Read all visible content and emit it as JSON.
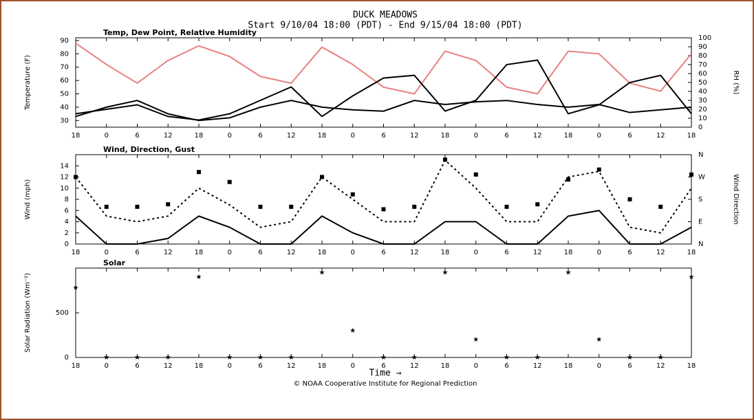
{
  "title": "DUCK MEADOWS",
  "subtitle": "Start 9/10/04 18:00 (PDT) - End 9/15/04 18:00 (PDT)",
  "xlabel": "Time →",
  "footer": "© NOAA Cooperative Institute for Regional Prediction",
  "chart_data": [
    {
      "type": "line",
      "title": "Temp, Dew Point, Relative Humidity",
      "ylabel": "Temperature (F)",
      "y2label": "RH (%)",
      "x": [
        0,
        6,
        12,
        18,
        24,
        30,
        36,
        42,
        48,
        54,
        60,
        66,
        72,
        78,
        84,
        90,
        96,
        102,
        108,
        114,
        120
      ],
      "xlim": [
        0,
        120
      ],
      "xticks": [
        {
          "value": 0,
          "label": "18"
        },
        {
          "value": 6,
          "label": "0"
        },
        {
          "value": 12,
          "label": "6"
        },
        {
          "value": 18,
          "label": "12"
        },
        {
          "value": 24,
          "label": "18"
        },
        {
          "value": 30,
          "label": "0"
        },
        {
          "value": 36,
          "label": "6"
        },
        {
          "value": 42,
          "label": "12"
        },
        {
          "value": 48,
          "label": "18"
        },
        {
          "value": 54,
          "label": "0"
        },
        {
          "value": 60,
          "label": "6"
        },
        {
          "value": 66,
          "label": "12"
        },
        {
          "value": 72,
          "label": "18"
        },
        {
          "value": 78,
          "label": "0"
        },
        {
          "value": 84,
          "label": "6"
        },
        {
          "value": 90,
          "label": "12"
        },
        {
          "value": 96,
          "label": "18"
        },
        {
          "value": 102,
          "label": "0"
        },
        {
          "value": 108,
          "label": "6"
        },
        {
          "value": 114,
          "label": "12"
        },
        {
          "value": 120,
          "label": "18"
        }
      ],
      "ylim": [
        25,
        92
      ],
      "yticks": [
        30,
        40,
        50,
        60,
        70,
        80,
        90
      ],
      "y2lim": [
        0,
        100
      ],
      "y2ticks": [
        0,
        10,
        20,
        30,
        40,
        50,
        60,
        70,
        80,
        90,
        100
      ],
      "series": [
        {
          "color": "#e88080",
          "style": "line",
          "values": [
            88,
            72,
            58,
            75,
            86,
            78,
            63,
            58,
            85,
            72,
            55,
            50,
            82,
            75,
            55,
            50,
            82,
            80,
            58,
            52,
            80
          ]
        },
        {
          "color": "#000000",
          "style": "line",
          "values": [
            33,
            40,
            45,
            35,
            30,
            32,
            40,
            45,
            40,
            38,
            37,
            45,
            42,
            44,
            45,
            42,
            40,
            42,
            36,
            38,
            40
          ]
        },
        {
          "color": "#000000",
          "style": "line",
          "axis": "y2",
          "values": [
            15,
            20,
            25,
            12,
            8,
            15,
            30,
            45,
            12,
            35,
            55,
            58,
            18,
            30,
            70,
            75,
            15,
            25,
            50,
            58,
            15
          ]
        }
      ]
    },
    {
      "type": "line",
      "title": "Wind, Direction, Gust",
      "ylabel": "Wind (mph)",
      "y2label": "Wind Direction",
      "x": [
        0,
        6,
        12,
        18,
        24,
        30,
        36,
        42,
        48,
        54,
        60,
        66,
        72,
        78,
        84,
        90,
        96,
        102,
        108,
        114,
        120
      ],
      "xlim": [
        0,
        120
      ],
      "xticks": [
        {
          "value": 0,
          "label": "18"
        },
        {
          "value": 6,
          "label": "0"
        },
        {
          "value": 12,
          "label": "6"
        },
        {
          "value": 18,
          "label": "12"
        },
        {
          "value": 24,
          "label": "18"
        },
        {
          "value": 30,
          "label": "0"
        },
        {
          "value": 36,
          "label": "6"
        },
        {
          "value": 42,
          "label": "12"
        },
        {
          "value": 48,
          "label": "18"
        },
        {
          "value": 54,
          "label": "0"
        },
        {
          "value": 60,
          "label": "6"
        },
        {
          "value": 66,
          "label": "12"
        },
        {
          "value": 72,
          "label": "18"
        },
        {
          "value": 78,
          "label": "0"
        },
        {
          "value": 84,
          "label": "6"
        },
        {
          "value": 90,
          "label": "12"
        },
        {
          "value": 96,
          "label": "18"
        },
        {
          "value": 102,
          "label": "0"
        },
        {
          "value": 108,
          "label": "6"
        },
        {
          "value": 114,
          "label": "12"
        },
        {
          "value": 120,
          "label": "18"
        }
      ],
      "ylim": [
        0,
        16
      ],
      "yticks": [
        0,
        2,
        4,
        6,
        8,
        10,
        12,
        14
      ],
      "y2lim": [
        0,
        360
      ],
      "y2ticks": [
        {
          "value": 0,
          "label": "N"
        },
        {
          "value": 90,
          "label": "E"
        },
        {
          "value": 180,
          "label": "S"
        },
        {
          "value": 270,
          "label": "W"
        },
        {
          "value": 360,
          "label": "N"
        }
      ],
      "series": [
        {
          "color": "#000000",
          "style": "line",
          "values": [
            5,
            0,
            0,
            1,
            5,
            3,
            0,
            0,
            5,
            2,
            0,
            0,
            4,
            4,
            0,
            0,
            5,
            6,
            0,
            0,
            3
          ]
        },
        {
          "color": "#000000",
          "style": "dashed",
          "values": [
            12,
            5,
            4,
            5,
            10,
            7,
            3,
            4,
            12,
            8,
            4,
            4,
            15,
            10,
            4,
            4,
            12,
            13,
            3,
            2,
            10
          ]
        },
        {
          "color": "#000000",
          "style": "points",
          "axis": "y2",
          "values": [
            270,
            150,
            150,
            160,
            290,
            250,
            150,
            150,
            270,
            200,
            140,
            150,
            340,
            280,
            150,
            160,
            260,
            300,
            180,
            150,
            280
          ]
        }
      ]
    },
    {
      "type": "scatter",
      "title": "Solar",
      "ylabel": "Solar Radiation (Wm⁻²)",
      "x": [
        0,
        6,
        12,
        18,
        24,
        30,
        36,
        42,
        48,
        54,
        60,
        66,
        72,
        78,
        84,
        90,
        96,
        102,
        108,
        114,
        120
      ],
      "xlim": [
        0,
        120
      ],
      "xticks": [
        {
          "value": 0,
          "label": "18"
        },
        {
          "value": 6,
          "label": "0"
        },
        {
          "value": 12,
          "label": "6"
        },
        {
          "value": 18,
          "label": "12"
        },
        {
          "value": 24,
          "label": "18"
        },
        {
          "value": 30,
          "label": "0"
        },
        {
          "value": 36,
          "label": "6"
        },
        {
          "value": 42,
          "label": "12"
        },
        {
          "value": 48,
          "label": "18"
        },
        {
          "value": 54,
          "label": "0"
        },
        {
          "value": 60,
          "label": "6"
        },
        {
          "value": 66,
          "label": "12"
        },
        {
          "value": 72,
          "label": "18"
        },
        {
          "value": 78,
          "label": "0"
        },
        {
          "value": 84,
          "label": "6"
        },
        {
          "value": 90,
          "label": "12"
        },
        {
          "value": 96,
          "label": "18"
        },
        {
          "value": 102,
          "label": "0"
        },
        {
          "value": 108,
          "label": "6"
        },
        {
          "value": 114,
          "label": "12"
        },
        {
          "value": 120,
          "label": "18"
        }
      ],
      "ylim": [
        0,
        1000
      ],
      "yticks": [
        0,
        500
      ],
      "series": [
        {
          "color": "#000000",
          "style": "stars",
          "values": [
            780,
            0,
            0,
            0,
            900,
            0,
            0,
            0,
            950,
            300,
            0,
            0,
            950,
            200,
            0,
            0,
            950,
            200,
            0,
            0,
            900
          ]
        }
      ]
    }
  ]
}
